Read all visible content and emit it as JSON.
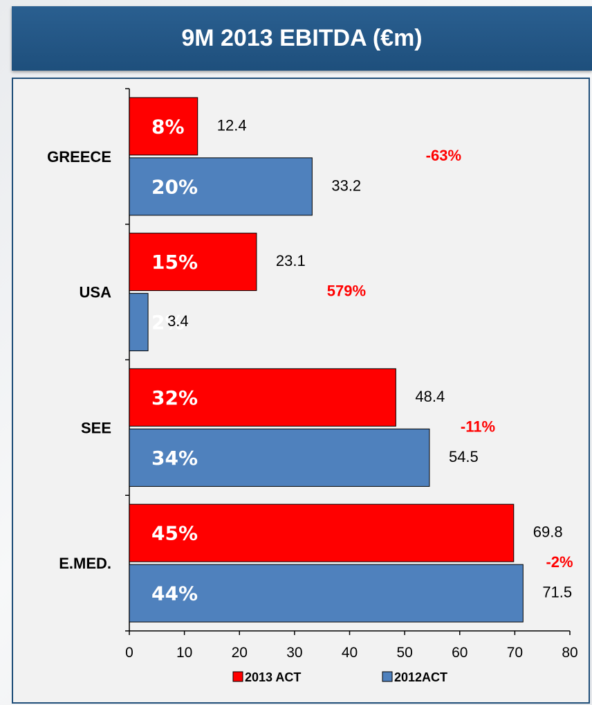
{
  "header": {
    "title": "9M 2013 EBITDA (€m)"
  },
  "chart_data": {
    "type": "bar",
    "orientation": "horizontal",
    "title": "9M 2013 EBITDA (€m)",
    "categories": [
      "GREECE",
      "USA",
      "SEE",
      "E.MED."
    ],
    "series": [
      {
        "name": "2013 ACT",
        "color": "#ff0000",
        "values": [
          12.4,
          23.1,
          48.4,
          69.8
        ],
        "share_labels": [
          "8%",
          "15%",
          "32%",
          "45%"
        ]
      },
      {
        "name": "2012ACT",
        "color": "#4f81bd",
        "values": [
          33.2,
          3.4,
          54.5,
          71.5
        ],
        "share_labels": [
          "20%",
          "2%",
          "34%",
          "44%"
        ]
      }
    ],
    "value_labels": [
      [
        "12.4",
        "23.1",
        "48.4",
        "69.8"
      ],
      [
        "33.2",
        "3.4",
        "54.5",
        "71.5"
      ]
    ],
    "change_labels": [
      "-63%",
      "579%",
      "-11%",
      "-2%"
    ],
    "xlim": [
      0,
      80
    ],
    "xticks": [
      "0",
      "10",
      "20",
      "30",
      "40",
      "50",
      "60",
      "70",
      "80"
    ],
    "grid": false,
    "legend": "bottom"
  }
}
